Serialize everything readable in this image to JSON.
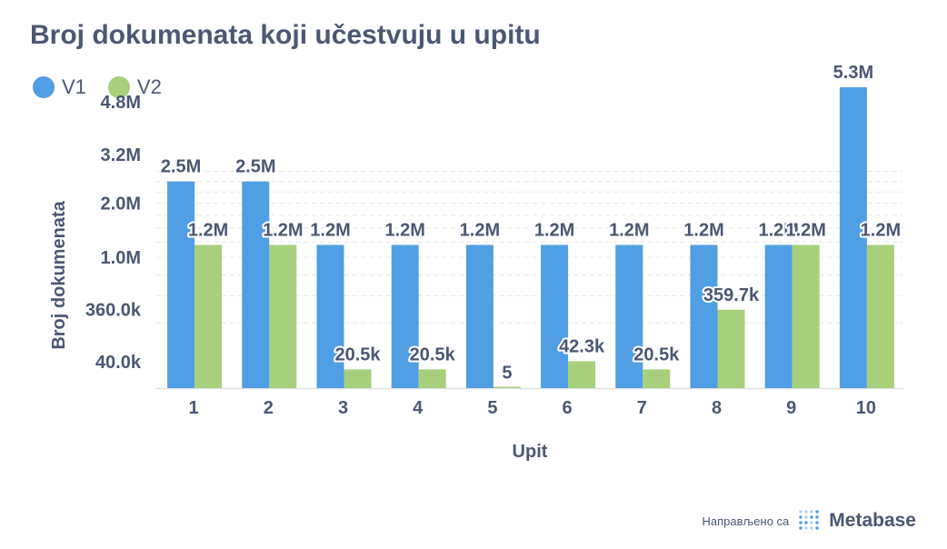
{
  "header": {
    "title": "Broj dokumenata koji učestvuju u upitu"
  },
  "footer": {
    "made_with": "Направљено са",
    "brand": "Metabase"
  },
  "colors": {
    "text": "#4c5773",
    "grid": "#e6e8ec",
    "V1": "#509ee3",
    "V2": "#a6d07c"
  },
  "chart_data": {
    "type": "bar",
    "title": "Broj dokumenata koji učestvuju u upitu",
    "xlabel": "Upit",
    "ylabel": "Broj dokumenata",
    "y_scale": "sqrt",
    "ylim": [
      0,
      5600000
    ],
    "y_ticks": [
      40000,
      360000,
      1000000,
      2000000,
      3200000,
      4800000
    ],
    "y_tick_labels": [
      "40.0k",
      "360.0k",
      "1.0M",
      "2.0M",
      "3.2M",
      "4.8M"
    ],
    "grid": true,
    "legend_position": "top-left",
    "categories": [
      "1",
      "2",
      "3",
      "4",
      "5",
      "6",
      "7",
      "8",
      "9",
      "10"
    ],
    "series": [
      {
        "name": "V1",
        "color": "#509ee3",
        "values": [
          2500000,
          2500000,
          1200000,
          1200000,
          1200000,
          1200000,
          1200000,
          1200000,
          1200000,
          5300000
        ],
        "labels": [
          "2.5M",
          "2.5M",
          "1.2M",
          "1.2M",
          "1.2M",
          "1.2M",
          "1.2M",
          "1.2M",
          "1.2M",
          "5.3M"
        ]
      },
      {
        "name": "V2",
        "color": "#a6d07c",
        "values": [
          1200000,
          1200000,
          20500,
          20500,
          5,
          42300,
          20500,
          359700,
          1200000,
          1200000
        ],
        "labels": [
          "1.2M",
          "1.2M",
          "20.5k",
          "20.5k",
          "5",
          "42.3k",
          "20.5k",
          "359.7k",
          "1.2M",
          "1.2M"
        ]
      }
    ]
  }
}
